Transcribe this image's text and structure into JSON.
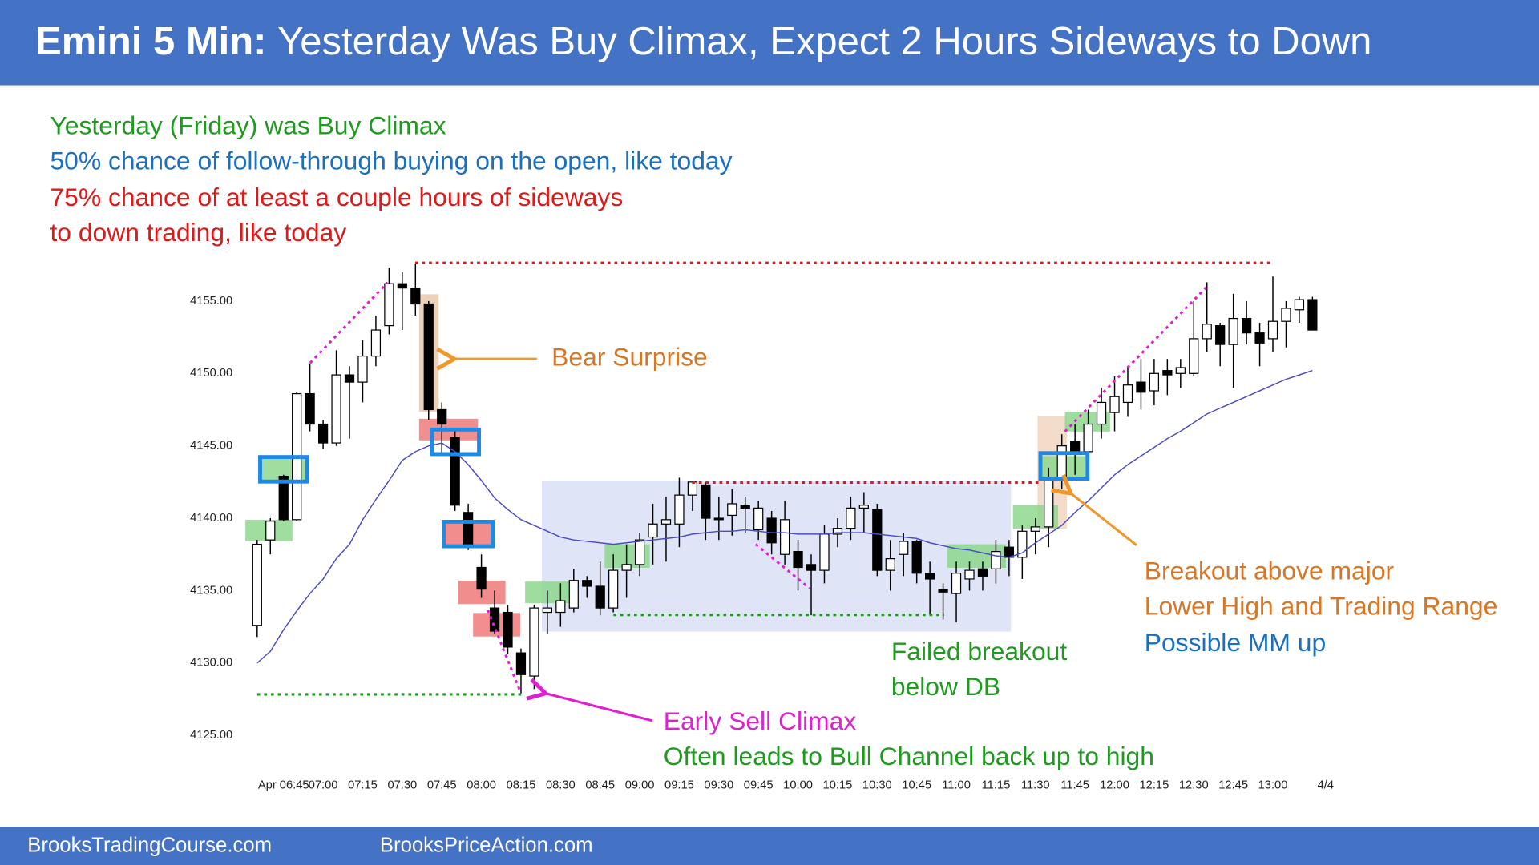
{
  "header": {
    "title_bold": "Emini 5 Min:",
    "title": "Yesterday Was Buy Climax, Expect 2 Hours Sideways to Down"
  },
  "notes": [
    "Yesterday (Friday) was Buy Climax",
    "50% chance of follow-through buying on the open, like today",
    "75% chance of at least a couple hours of sideways",
    "to down trading, like today"
  ],
  "footer": {
    "left": "BrooksTradingCourse.com",
    "right": "BrooksPriceAction.com"
  },
  "chart_data": {
    "type": "candlestick",
    "categories": [
      null,
      null,
      "Apr 06:45",
      null,
      null,
      "07:00",
      null,
      null,
      "07:15",
      null,
      null,
      "07:30",
      null,
      null,
      "07:45",
      null,
      null,
      "08:00",
      null,
      null,
      "08:15",
      null,
      null,
      "08:30",
      null,
      null,
      "08:45",
      null,
      null,
      "09:00",
      null,
      null,
      "09:15",
      null,
      null,
      "09:30",
      null,
      null,
      "09:45",
      null,
      null,
      "10:00",
      null,
      null,
      "10:15",
      null,
      null,
      "10:30",
      null,
      null,
      "10:45",
      null,
      null,
      "11:00",
      null,
      null,
      "11:15",
      null,
      null,
      "11:30",
      null,
      null,
      "11:45",
      null,
      null,
      "12:00",
      null,
      null,
      "12:15",
      null,
      null,
      "12:30",
      null,
      null,
      "12:45",
      null,
      null,
      "13:00",
      null,
      null,
      null
    ],
    "x_end_label": "4/4",
    "open": [
      4132.6,
      4138.5,
      4142.9,
      4139.9,
      4148.6,
      4146.5,
      4145.2,
      4149.9,
      4149.4,
      4151.2,
      4153.3,
      4156.2,
      4155.9,
      4154.8,
      4147.5,
      4145.6,
      4140.4,
      4136.6,
      4133.8,
      4133.5,
      4130.7,
      4129.1,
      4133.5,
      4133.5,
      4133.8,
      4135.7,
      4135.3,
      4133.8,
      4136.4,
      4136.8,
      4138.7,
      4139.6,
      4139.6,
      4141.6,
      4142.3,
      4140,
      4140.2,
      4140.9,
      4139.2,
      4140,
      4137.5,
      4137.7,
      4136.8,
      4136.4,
      4138.9,
      4139.3,
      4140.7,
      4140.6,
      4136.4,
      4137.5,
      4138.4,
      4136.2,
      4135.1,
      4134.8,
      4135.8,
      4136.5,
      4136.5,
      4138,
      4137.3,
      4139.1,
      4139.4,
      4142.6,
      4145.3,
      4144.6,
      4146.5,
      4147.3,
      4148,
      4149.4,
      4148.8,
      4150.2,
      4150,
      4150,
      4152.4,
      4153.3,
      4152,
      4153.8,
      4152.8,
      4152.4,
      4153.6,
      4154.4,
      4155.1
    ],
    "high": [
      4138.5,
      4140,
      4143,
      4148.7,
      4150.7,
      4146.8,
      4151.6,
      4150.5,
      4152.3,
      4154,
      4157.3,
      4157,
      4157.6,
      4155,
      4148,
      4146,
      4141,
      4137.5,
      4135,
      4134,
      4131,
      4134,
      4135,
      4135.5,
      4136.5,
      4136,
      4137,
      4137.5,
      4138.2,
      4139,
      4141,
      4141.5,
      4142.8,
      4142.6,
      4142.5,
      4141.5,
      4142,
      4141.5,
      4141.2,
      4140.5,
      4141.2,
      4138.5,
      4137.5,
      4139.5,
      4140,
      4141.5,
      4141.8,
      4141,
      4138.5,
      4139,
      4138.5,
      4137,
      4135.5,
      4137,
      4137,
      4137,
      4138.5,
      4138.5,
      4139.5,
      4140,
      4143.5,
      4145.8,
      4146.5,
      4147.5,
      4149,
      4149.8,
      4150.5,
      4151,
      4151,
      4151,
      4151,
      4155,
      4156.3,
      4153.5,
      4155.5,
      4155,
      4153.5,
      4156.7,
      4155,
      4155.3,
      4155.3
    ],
    "low": [
      4131.8,
      4137.5,
      4139.8,
      4139.8,
      4146,
      4144.8,
      4145,
      4145.5,
      4148,
      4150.5,
      4152.7,
      4153,
      4154,
      4146.8,
      4144.5,
      4140.5,
      4137.8,
      4134.5,
      4132,
      4130.6,
      4127.9,
      4128.2,
      4132,
      4132.5,
      4133.5,
      4134.5,
      4133.3,
      4133.5,
      4134.5,
      4136,
      4136.8,
      4137,
      4138,
      4140.5,
      4138.5,
      4138.5,
      4138.8,
      4139,
      4138.5,
      4137.5,
      4136.8,
      4135,
      4133.3,
      4135.5,
      4138,
      4138.5,
      4139,
      4136,
      4135,
      4136,
      4135.5,
      4133.3,
      4133,
      4132.8,
      4135,
      4135,
      4135.5,
      4136,
      4135.8,
      4137.5,
      4138,
      4142,
      4143,
      4144,
      4145.5,
      4146,
      4147,
      4147.5,
      4147.8,
      4148.5,
      4149,
      4149.8,
      4151.5,
      4150.5,
      4149,
      4152,
      4150.5,
      4151.5,
      4151.8,
      4153.5,
      4153
    ],
    "close": [
      4138.2,
      4139.8,
      4139.9,
      4148.6,
      4146.5,
      4145.2,
      4149.9,
      4149.4,
      4151.2,
      4153,
      4156.2,
      4155.9,
      4154.8,
      4147.5,
      4146.5,
      4140.9,
      4138.2,
      4135.1,
      4132.2,
      4131.1,
      4129.2,
      4133.8,
      4133.8,
      4134.3,
      4135.7,
      4135.3,
      4133.8,
      4136.4,
      4136.8,
      4138.5,
      4139.6,
      4139.9,
      4141.6,
      4142.5,
      4140,
      4139.9,
      4141,
      4140.7,
      4140.7,
      4138.3,
      4139.9,
      4136.6,
      4136.4,
      4138.9,
      4139.3,
      4140.7,
      4140.9,
      4136.4,
      4137.2,
      4138.4,
      4136.2,
      4135.8,
      4134.9,
      4136.2,
      4136.4,
      4136,
      4137.7,
      4137.3,
      4139.1,
      4139.4,
      4142.6,
      4145,
      4144.6,
      4146.5,
      4148,
      4148.4,
      4149.2,
      4148.7,
      4150,
      4149.9,
      4150.4,
      4152.4,
      4153.4,
      4152,
      4153.8,
      4152.8,
      4152.1,
      4153.6,
      4154.5,
      4155.1,
      4153
    ],
    "up_color": "#ffffff",
    "down_color": "#000000",
    "ma": {
      "color": "#4b4bc8",
      "values": [
        4130,
        4130.8,
        4132.3,
        4133.6,
        4134.8,
        4135.8,
        4137.2,
        4138.2,
        4139.9,
        4141.3,
        4142.6,
        4144,
        4144.6,
        4145,
        4145.2,
        4144.6,
        4143.7,
        4142.6,
        4141.4,
        4140.6,
        4139.9,
        4139.5,
        4139.1,
        4138.7,
        4138.5,
        4138.4,
        4138.3,
        4138.2,
        4138.3,
        4138.4,
        4138.5,
        4138.6,
        4138.7,
        4138.9,
        4139,
        4139.1,
        4139.1,
        4139.2,
        4139.1,
        4139,
        4139,
        4138.9,
        4138.9,
        4138.9,
        4139,
        4139,
        4139,
        4138.9,
        4138.8,
        4138.7,
        4138.6,
        4138.3,
        4138.1,
        4137.9,
        4137.8,
        4137.6,
        4137.4,
        4137.3,
        4137.6,
        4138.3,
        4138.9,
        4139.5,
        4140.4,
        4141.2,
        4142.1,
        4143,
        4143.7,
        4144.3,
        4144.9,
        4145.5,
        4146,
        4146.6,
        4147.2,
        4147.6,
        4148,
        4148.4,
        4148.8,
        4149.2,
        4149.6,
        4149.9,
        4150.2
      ]
    },
    "ylim": [
      4124,
      4158
    ],
    "yticks": [
      {
        "value": 4125,
        "label": "4125.00"
      },
      {
        "value": 4130,
        "label": "4130.00"
      },
      {
        "value": 4135,
        "label": "4135.00"
      },
      {
        "value": 4140,
        "label": "4140.00"
      },
      {
        "value": 4145,
        "label": "4145.00"
      },
      {
        "value": 4150,
        "label": "4150.00"
      },
      {
        "value": 4155,
        "label": "4155.00"
      }
    ],
    "annotations": [
      "Bear Surprise",
      "Early Sell Climax",
      "Often leads to Bull Channel back up to high",
      "Failed breakout",
      "below DB",
      "Breakout above major",
      "Lower High and Trading Range",
      "Possible MM up"
    ]
  }
}
